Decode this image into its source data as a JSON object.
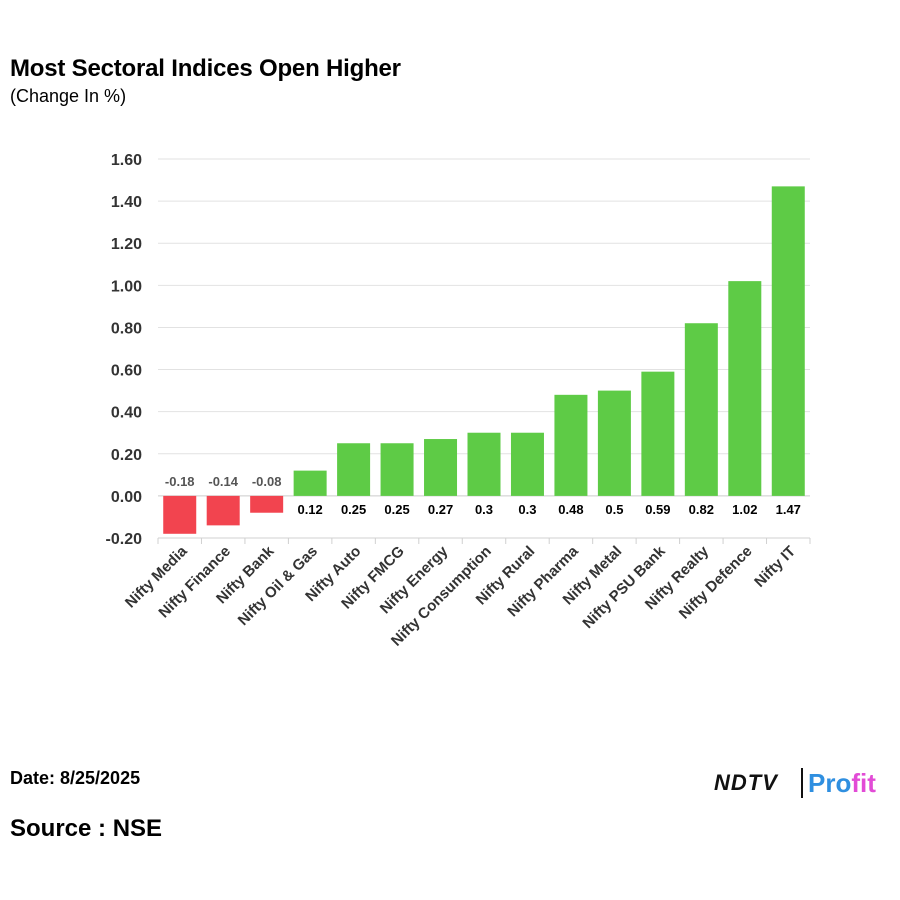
{
  "title": "Most Sectoral Indices Open Higher",
  "subtitle": "(Change In %)",
  "date_text": "Date: 8/25/2025",
  "source_text": "Source : NSE",
  "brand": {
    "left": "NDTV",
    "right_a": "Pro",
    "right_b": "fit"
  },
  "colors": {
    "positive": "#5ecb46",
    "negative": "#f2444f",
    "grid": "#e2e2e2"
  },
  "chart_data": {
    "type": "bar",
    "categories": [
      "Nifty Media",
      "Nifty Finance",
      "Nifty Bank",
      "Nifty Oil & Gas",
      "Nifty Auto",
      "Nifty FMCG",
      "Nifty Energy",
      "Nifty Consumption",
      "Nifty Rural",
      "Nifty Pharma",
      "Nifty Metal",
      "Nifty PSU Bank",
      "Nifty Realty",
      "Nifty Defence",
      "Nifty IT"
    ],
    "values": [
      -0.18,
      -0.14,
      -0.08,
      0.12,
      0.25,
      0.25,
      0.27,
      0.3,
      0.3,
      0.48,
      0.5,
      0.59,
      0.82,
      1.02,
      1.47
    ],
    "data_labels": [
      "-0.18",
      "-0.14",
      "-0.08",
      "0.12",
      "0.25",
      "0.25",
      "0.27",
      "0.3",
      "0.3",
      "0.48",
      "0.5",
      "0.59",
      "0.82",
      "1.02",
      "1.47"
    ],
    "y_ticks": [
      "-0.20",
      "0.00",
      "0.20",
      "0.40",
      "0.60",
      "0.80",
      "1.00",
      "1.20",
      "1.40",
      "1.60"
    ],
    "ylim": [
      -0.2,
      1.6
    ],
    "grid": true,
    "xlabel": "",
    "ylabel": ""
  }
}
